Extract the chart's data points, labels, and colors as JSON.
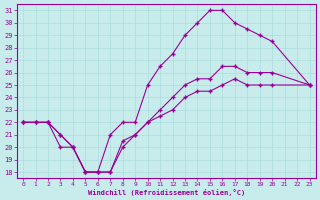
{
  "xlabel": "Windchill (Refroidissement éolien,°C)",
  "bg_color": "#c8ecec",
  "line_color": "#990099",
  "grid_color": "#aadddd",
  "xlim": [
    -0.5,
    23.5
  ],
  "ylim": [
    17.5,
    31.5
  ],
  "xticks": [
    0,
    1,
    2,
    3,
    4,
    5,
    6,
    7,
    8,
    9,
    10,
    11,
    12,
    13,
    14,
    15,
    16,
    17,
    18,
    19,
    20,
    21,
    22,
    23
  ],
  "yticks": [
    18,
    19,
    20,
    21,
    22,
    23,
    24,
    25,
    26,
    27,
    28,
    29,
    30,
    31
  ],
  "line1_x": [
    0,
    1,
    2,
    3,
    4,
    5,
    6,
    7,
    8,
    9,
    10,
    11,
    12,
    13,
    14,
    15,
    16,
    17,
    18,
    19,
    20,
    23
  ],
  "line1_y": [
    22,
    22,
    22,
    20,
    20,
    18,
    18,
    21,
    22,
    22,
    25,
    26.5,
    27.5,
    29,
    30,
    31,
    31,
    30,
    29.5,
    29,
    28.5,
    25
  ],
  "line2_x": [
    0,
    1,
    2,
    3,
    4,
    5,
    6,
    7,
    8,
    9,
    10,
    11,
    12,
    13,
    14,
    15,
    16,
    17,
    18,
    19,
    20,
    23
  ],
  "line2_y": [
    22,
    22,
    22,
    21,
    20,
    18,
    18,
    18,
    20.5,
    21,
    22,
    23,
    24,
    25,
    25.5,
    25.5,
    26.5,
    26.5,
    26,
    26,
    26,
    25
  ],
  "line3_x": [
    0,
    1,
    2,
    3,
    4,
    5,
    6,
    7,
    8,
    9,
    10,
    11,
    12,
    13,
    14,
    15,
    16,
    17,
    18,
    19,
    20,
    23
  ],
  "line3_y": [
    22,
    22,
    22,
    21,
    20,
    18,
    18,
    18,
    20,
    21,
    22,
    22.5,
    23,
    24,
    24.5,
    24.5,
    25,
    25.5,
    25,
    25,
    25,
    25
  ]
}
